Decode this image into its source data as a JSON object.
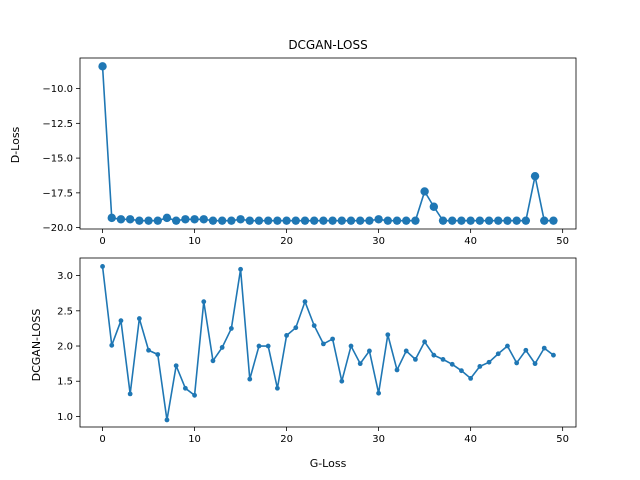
{
  "chart_data": [
    {
      "type": "line",
      "title": "DCGAN-LOSS",
      "xlabel": "",
      "ylabel": "D-Loss",
      "xlim": [
        -2.45,
        51.45
      ],
      "ylim": [
        -20.1,
        -7.8
      ],
      "xticks": [
        0,
        10,
        20,
        30,
        40,
        50
      ],
      "yticks": [
        -20.0,
        -17.5,
        -15.0,
        -12.5,
        -10.0
      ],
      "ytick_labels": [
        "−20.0",
        "−17.5",
        "−15.0",
        "−12.5",
        "−10.0"
      ],
      "marker": "circle-large",
      "color": "#1f77b4",
      "grid": false,
      "series": [
        {
          "x": [
            0,
            1,
            2,
            3,
            4,
            5,
            6,
            7,
            8,
            9,
            10,
            11,
            12,
            13,
            14,
            15,
            16,
            17,
            18,
            19,
            20,
            21,
            22,
            23,
            24,
            25,
            26,
            27,
            28,
            29,
            30,
            31,
            32,
            33,
            34,
            35,
            36,
            37,
            38,
            39,
            40,
            41,
            42,
            43,
            44,
            45,
            46,
            47,
            48,
            49
          ],
          "values": [
            -8.4,
            -19.3,
            -19.4,
            -19.4,
            -19.5,
            -19.5,
            -19.5,
            -19.3,
            -19.5,
            -19.4,
            -19.4,
            -19.4,
            -19.5,
            -19.5,
            -19.5,
            -19.4,
            -19.5,
            -19.5,
            -19.5,
            -19.5,
            -19.5,
            -19.5,
            -19.5,
            -19.5,
            -19.5,
            -19.5,
            -19.5,
            -19.5,
            -19.5,
            -19.5,
            -19.4,
            -19.5,
            -19.5,
            -19.5,
            -19.5,
            -17.4,
            -18.5,
            -19.5,
            -19.5,
            -19.5,
            -19.5,
            -19.5,
            -19.5,
            -19.5,
            -19.5,
            -19.5,
            -19.5,
            -16.3,
            -19.5,
            -19.5
          ]
        }
      ]
    },
    {
      "type": "line",
      "title": "",
      "xlabel": "G-Loss",
      "ylabel": "DCGAN-LOSS",
      "xlim": [
        -2.45,
        51.45
      ],
      "ylim": [
        0.85,
        3.25
      ],
      "xticks": [
        0,
        10,
        20,
        30,
        40,
        50
      ],
      "yticks": [
        1.0,
        1.5,
        2.0,
        2.5,
        3.0
      ],
      "ytick_labels": [
        "1.0",
        "1.5",
        "2.0",
        "2.5",
        "3.0"
      ],
      "marker": "circle-small",
      "color": "#1f77b4",
      "grid": false,
      "series": [
        {
          "x": [
            0,
            1,
            2,
            3,
            4,
            5,
            6,
            7,
            8,
            9,
            10,
            11,
            12,
            13,
            14,
            15,
            16,
            17,
            18,
            19,
            20,
            21,
            22,
            23,
            24,
            25,
            26,
            27,
            28,
            29,
            30,
            31,
            32,
            33,
            34,
            35,
            36,
            37,
            38,
            39,
            40,
            41,
            42,
            43,
            44,
            45,
            46,
            47,
            48,
            49
          ],
          "values": [
            3.13,
            2.01,
            2.36,
            1.32,
            2.39,
            1.94,
            1.88,
            0.95,
            1.72,
            1.4,
            1.3,
            2.63,
            1.79,
            1.98,
            2.25,
            3.09,
            1.53,
            2.0,
            2.0,
            1.4,
            2.15,
            2.26,
            2.63,
            2.29,
            2.03,
            2.1,
            1.5,
            2.0,
            1.75,
            1.93,
            1.33,
            2.16,
            1.66,
            1.93,
            1.81,
            2.06,
            1.87,
            1.81,
            1.74,
            1.65,
            1.54,
            1.71,
            1.77,
            1.89,
            2.0,
            1.76,
            1.94,
            1.75,
            1.97,
            1.87
          ]
        }
      ]
    }
  ]
}
